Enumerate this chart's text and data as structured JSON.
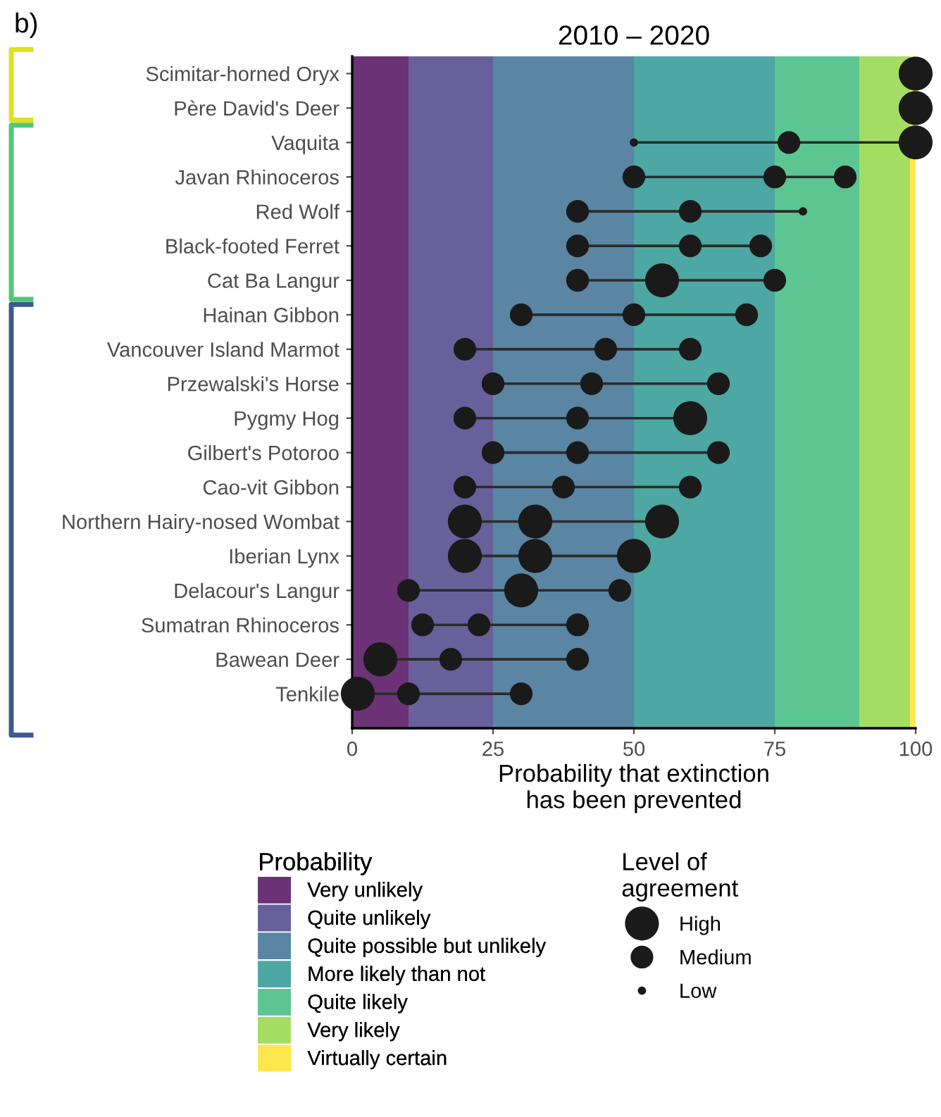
{
  "chart_data": {
    "type": "bubble",
    "title": "2010 – 2020",
    "xlabel": "Probability that extinction\nhas been prevented",
    "legend_title": [
      "Probability",
      "Level of\nagreement"
    ],
    "annotations": [
      "b)"
    ],
    "categories": [
      "Scimitar-horned Oryx",
      "Père David's Deer",
      "Vaquita",
      "Javan Rhinoceros",
      "Red Wolf",
      "Black-footed Ferret",
      "Cat Ba Langur",
      "Hainan Gibbon",
      "Vancouver Island Marmot",
      "Przewalski's Horse",
      "Pygmy Hog",
      "Gilbert's Potoroo",
      "Cao-vit Gibbon",
      "Northern Hairy-nosed Wombat",
      "Iberian Lynx",
      "Delacour's Langur",
      "Sumatran Rhinoceros",
      "Bawean Deer",
      "Tenkile"
    ],
    "orientation": "horizontal",
    "series": [
      {
        "color": "#1a1a1a",
        "values": [
          null,
          null,
          50,
          50,
          40,
          40,
          40,
          30,
          20,
          25,
          20,
          25,
          20,
          20,
          20,
          10,
          12.5,
          5,
          1
        ],
        "sizes": [
          null,
          null,
          0.06,
          0.45,
          0.45,
          0.45,
          0.45,
          0.45,
          0.45,
          0.45,
          0.45,
          0.45,
          0.45,
          1,
          1,
          0.45,
          0.45,
          1,
          1
        ]
      },
      {
        "color": "#1a1a1a",
        "values": [
          100,
          100,
          77.5,
          75,
          60,
          60,
          55,
          50,
          45,
          42.5,
          40,
          40,
          37.5,
          32.5,
          32.5,
          30,
          22.5,
          17.5,
          10
        ],
        "sizes": [
          1,
          1,
          0.45,
          0.45,
          0.45,
          0.45,
          1,
          0.45,
          0.45,
          0.45,
          0.45,
          0.45,
          0.45,
          1,
          1,
          1,
          0.45,
          0.45,
          0.45
        ]
      },
      {
        "color": "#1a1a1a",
        "values": [
          null,
          null,
          100,
          87.5,
          80,
          72.5,
          75,
          70,
          60,
          65,
          60,
          65,
          60,
          55,
          50,
          47.5,
          40,
          40,
          30
        ],
        "sizes": [
          null,
          null,
          1,
          0.45,
          0.06,
          0.45,
          0.45,
          0.45,
          0.45,
          0.45,
          1,
          0.45,
          0.45,
          1,
          1,
          0.45,
          0.45,
          0.45,
          0.45
        ]
      }
    ],
    "size_legend": [
      {
        "value": 1,
        "label": "High"
      },
      {
        "value": 0.45,
        "label": "Medium"
      },
      {
        "value": 0.06,
        "label": "Low"
      }
    ],
    "xlim": [
      0,
      100
    ],
    "xticks": [
      0,
      25,
      50,
      75,
      100
    ],
    "bands": [
      {
        "axis": "x",
        "from": 0,
        "to": 10,
        "label": "Very unlikely",
        "color": "#6b3275"
      },
      {
        "axis": "x",
        "from": 10,
        "to": 25,
        "label": "Quite unlikely",
        "color": "#67609a"
      },
      {
        "axis": "x",
        "from": 25,
        "to": 50,
        "label": "Quite possible but unlikely",
        "color": "#5a85a3"
      },
      {
        "axis": "x",
        "from": 50,
        "to": 75,
        "label": "More likely than not",
        "color": "#4da7a3"
      },
      {
        "axis": "x",
        "from": 75,
        "to": 90,
        "label": "Quite likely",
        "color": "#5cc592"
      },
      {
        "axis": "x",
        "from": 90,
        "to": 99,
        "label": "Very likely",
        "color": "#a4dd63"
      },
      {
        "axis": "x",
        "from": 99,
        "to": 100,
        "label": "Virtually certain",
        "color": "#fde74c"
      }
    ],
    "grid": false,
    "legend": "bottom"
  }
}
